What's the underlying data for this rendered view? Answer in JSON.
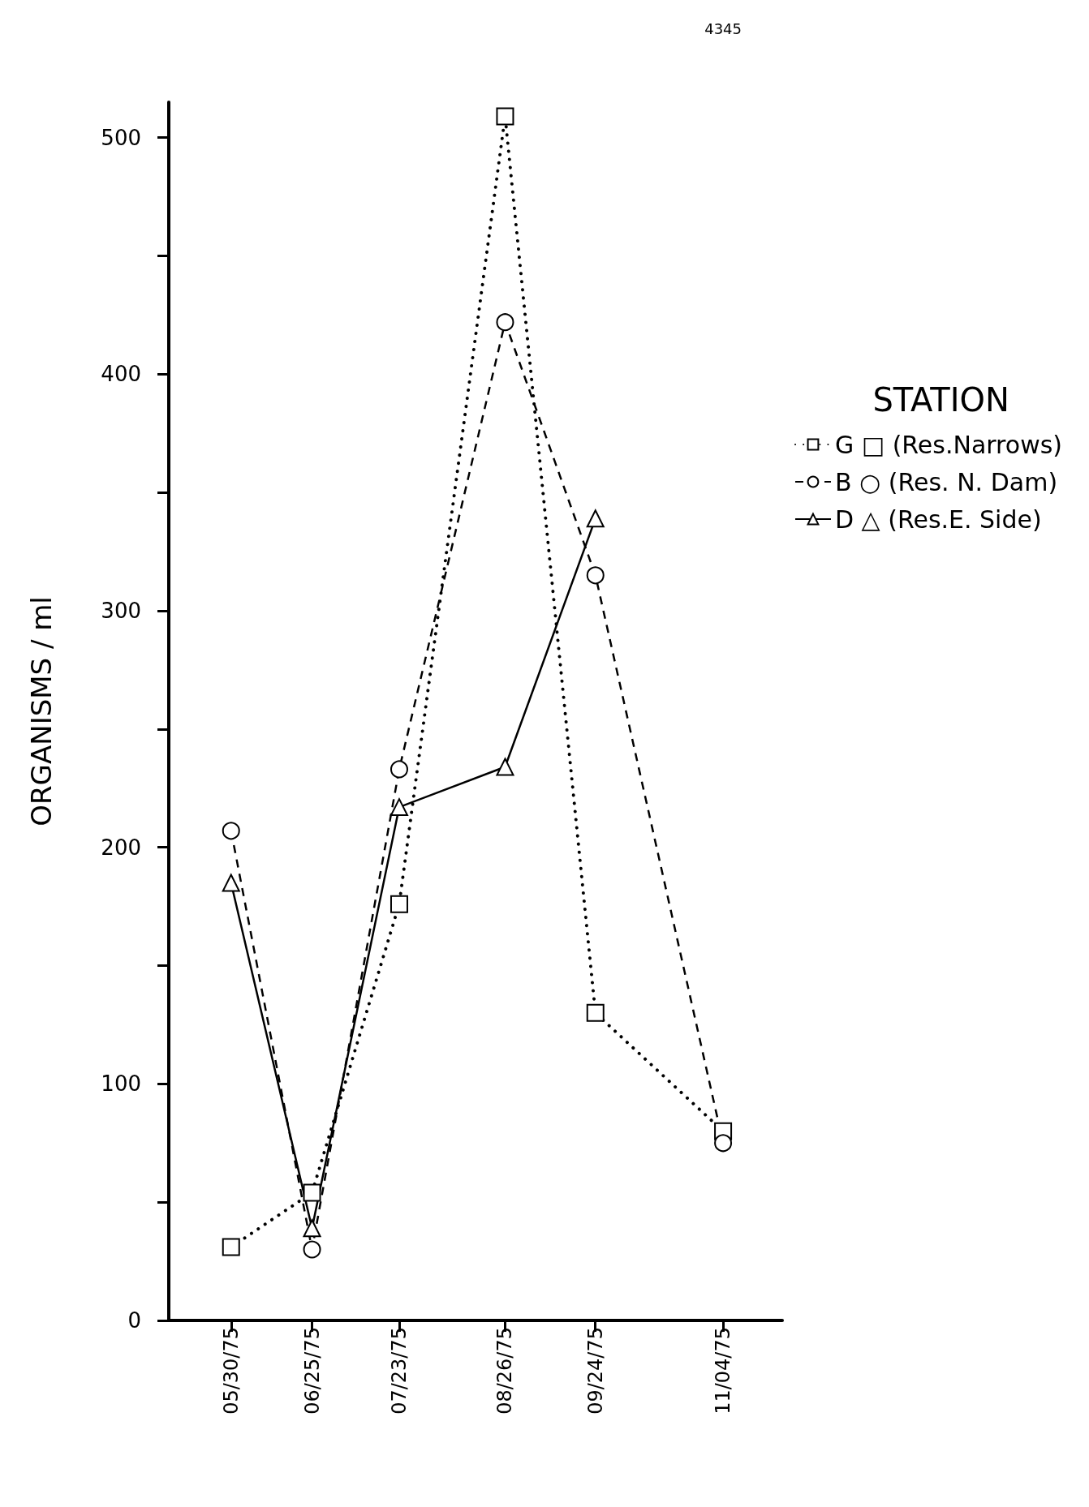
{
  "chart_data": {
    "type": "line",
    "ylabel": "ORGANISMS / ml",
    "legend_title": "STATION",
    "x": [
      "1975-05-30",
      "1975-06-25",
      "1975-07-23",
      "1975-08-26",
      "1975-09-24",
      "1975-11-04"
    ],
    "xlim": [
      "1975-05-10",
      "1975-11-23"
    ],
    "xticks": [
      {
        "value": "1975-05-30",
        "label": "05/30/75"
      },
      {
        "value": "1975-06-25",
        "label": "06/25/75"
      },
      {
        "value": "1975-07-23",
        "label": "07/23/75"
      },
      {
        "value": "1975-08-26",
        "label": "08/26/75"
      },
      {
        "value": "1975-09-24",
        "label": "09/24/75"
      },
      {
        "value": "1975-11-04",
        "label": "11/04/75"
      }
    ],
    "ylim": [
      0,
      515
    ],
    "yticks": [
      0,
      {
        "value": 50,
        "label": null
      },
      100,
      {
        "value": 150,
        "label": null
      },
      200,
      {
        "value": 250,
        "label": null
      },
      300,
      {
        "value": 350,
        "label": null
      },
      400,
      {
        "value": 450,
        "label": null
      },
      500
    ],
    "series": [
      {
        "name": "G □ (Res.Narrows)",
        "color": "#000000",
        "marker": "square",
        "line_style": "dotted",
        "values": [
          31,
          54,
          176,
          509,
          130,
          80
        ]
      },
      {
        "name": "B ○ (Res. N. Dam)",
        "color": "#000000",
        "marker": "circle",
        "line_style": "dashed",
        "values": [
          207,
          30,
          233,
          422,
          315,
          75
        ]
      },
      {
        "name": "D △ (Res.E. Side)",
        "color": "#000000",
        "marker": "triangle",
        "line_style": "solid",
        "values": [
          185,
          39,
          217,
          234,
          339,
          null
        ]
      }
    ],
    "annotations": [
      "4345"
    ],
    "legend": "right",
    "grid": false
  }
}
